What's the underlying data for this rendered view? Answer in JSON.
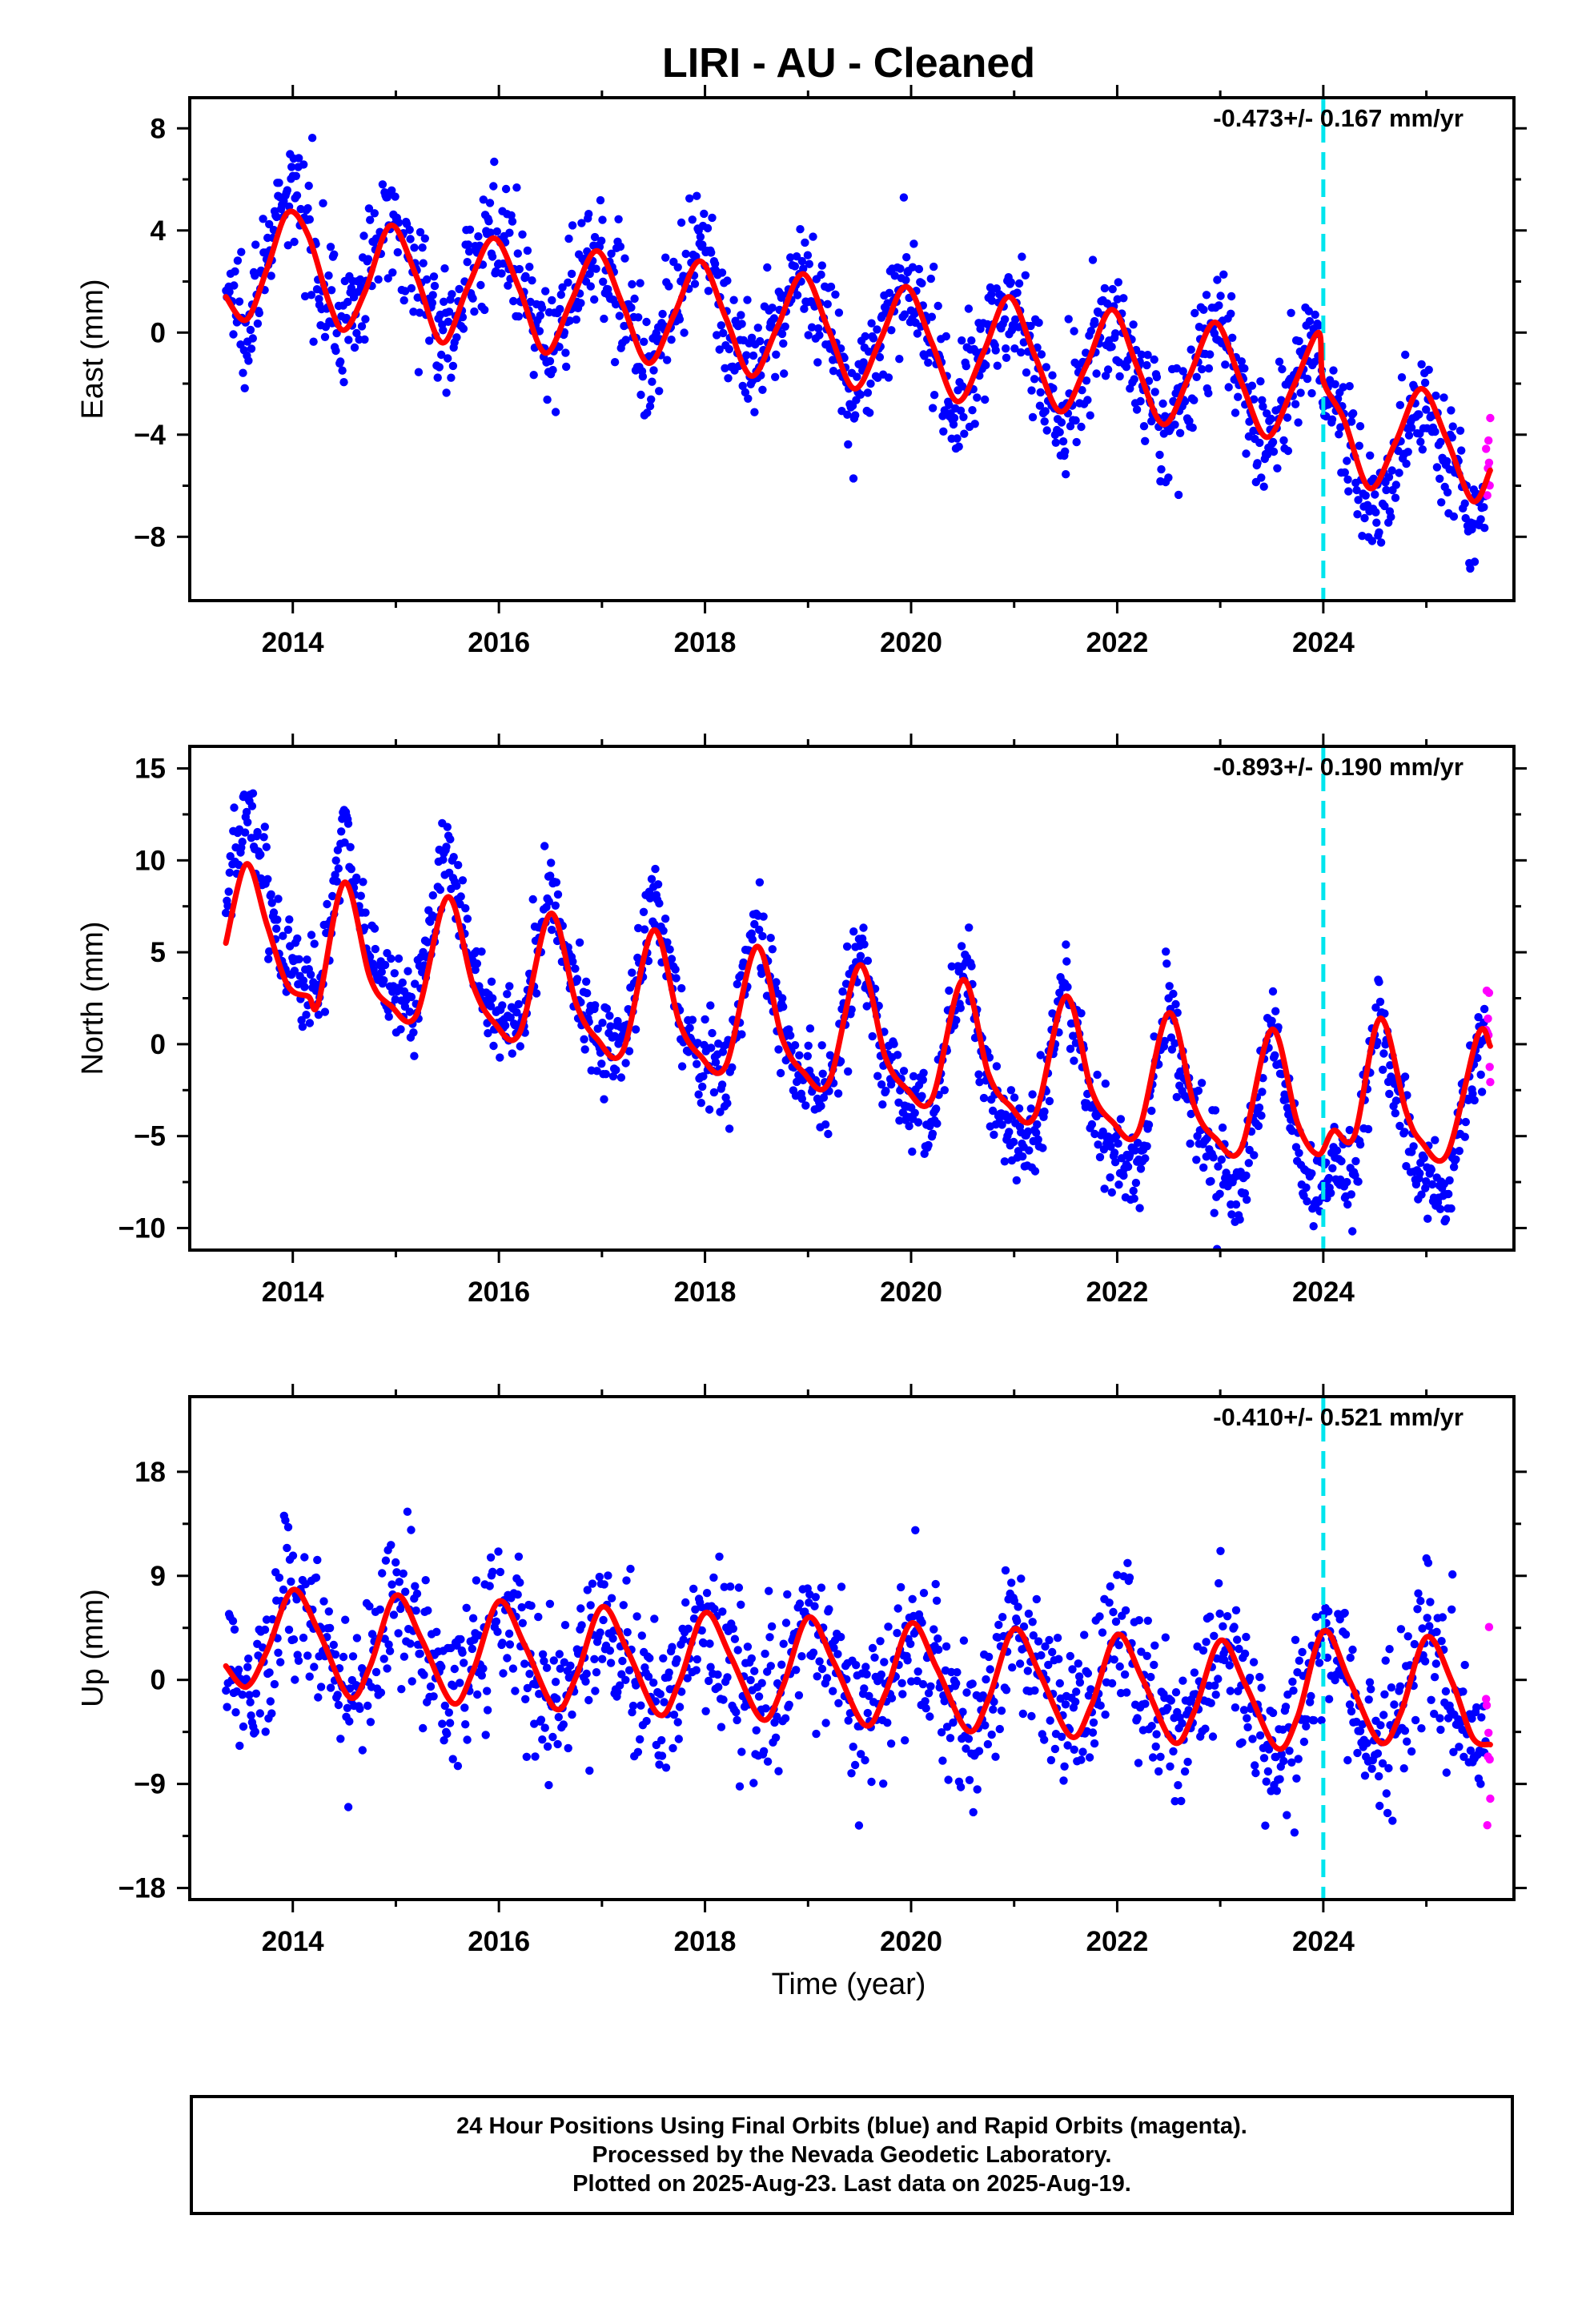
{
  "figure_title": "LIRI  - AU - Cleaned",
  "xlabel": "Time (year)",
  "colors": {
    "final_orbits": "#0000ff",
    "rapid_orbits": "#ff00ff",
    "model_fit": "#ff0000",
    "equipment_change": "#00e5ee"
  },
  "caption": {
    "line1": "24 Hour Positions Using Final Orbits (blue) and Rapid Orbits (magenta).",
    "line2": "Processed by the Nevada Geodetic Laboratory.",
    "line3": "Plotted on 2025-Aug-23. Last data on 2025-Aug-19."
  },
  "chart_data": [
    {
      "type": "scatter",
      "component": "East",
      "ylabel": "East (mm)",
      "rate_label": "-0.473+/- 0.167 mm/yr",
      "xlim": [
        2013.0,
        2025.85
      ],
      "ylim": [
        -10.5,
        9.2
      ],
      "x_ticks": [
        2014,
        2016,
        2018,
        2020,
        2022,
        2024
      ],
      "x_tick_labels": [
        "2014",
        "2016",
        "2018",
        "2020",
        "2022",
        "2024"
      ],
      "y_ticks": [
        8,
        4,
        0,
        -4,
        -8
      ],
      "y_tick_labels": [
        "8",
        "4",
        "0",
        "−4",
        "−8"
      ],
      "data_start": 2013.35,
      "data_end": 2025.62,
      "rapid_start": 2025.58,
      "equipment_change_year": 2024.0,
      "model_fit_year_mm": [
        [
          2013.35,
          1.4
        ],
        [
          2013.55,
          0.5
        ],
        [
          2013.75,
          2.5
        ],
        [
          2013.95,
          4.7
        ],
        [
          2014.15,
          3.8
        ],
        [
          2014.35,
          1.2
        ],
        [
          2014.5,
          0.1
        ],
        [
          2014.7,
          1.6
        ],
        [
          2014.95,
          4.2
        ],
        [
          2015.2,
          2.2
        ],
        [
          2015.45,
          -0.4
        ],
        [
          2015.7,
          1.8
        ],
        [
          2015.95,
          3.7
        ],
        [
          2016.2,
          1.7
        ],
        [
          2016.45,
          -0.8
        ],
        [
          2016.7,
          1.2
        ],
        [
          2016.95,
          3.2
        ],
        [
          2017.2,
          1.1
        ],
        [
          2017.45,
          -1.2
        ],
        [
          2017.7,
          0.7
        ],
        [
          2017.95,
          2.8
        ],
        [
          2018.2,
          0.6
        ],
        [
          2018.45,
          -1.7
        ],
        [
          2018.7,
          0.2
        ],
        [
          2018.95,
          2.3
        ],
        [
          2019.2,
          0.1
        ],
        [
          2019.45,
          -2.2
        ],
        [
          2019.7,
          -0.3
        ],
        [
          2019.95,
          1.8
        ],
        [
          2020.2,
          -0.4
        ],
        [
          2020.45,
          -2.7
        ],
        [
          2020.7,
          -0.8
        ],
        [
          2020.95,
          1.4
        ],
        [
          2021.2,
          -0.9
        ],
        [
          2021.45,
          -3.1
        ],
        [
          2021.7,
          -1.3
        ],
        [
          2021.95,
          0.9
        ],
        [
          2022.2,
          -1.4
        ],
        [
          2022.45,
          -3.6
        ],
        [
          2022.7,
          -1.7
        ],
        [
          2022.95,
          0.4
        ],
        [
          2023.2,
          -1.9
        ],
        [
          2023.45,
          -4.1
        ],
        [
          2023.7,
          -2.2
        ],
        [
          2023.95,
          0.0
        ],
        [
          2024.0,
          -1.9
        ],
        [
          2024.2,
          -3.4
        ],
        [
          2024.45,
          -6.1
        ],
        [
          2024.7,
          -4.3
        ],
        [
          2024.95,
          -2.2
        ],
        [
          2025.2,
          -4.2
        ],
        [
          2025.45,
          -6.6
        ],
        [
          2025.62,
          -5.4
        ]
      ]
    },
    {
      "type": "scatter",
      "component": "North",
      "ylabel": "North (mm)",
      "rate_label": "-0.893+/- 0.190 mm/yr",
      "xlim": [
        2013.0,
        2025.85
      ],
      "ylim": [
        -11.2,
        16.2
      ],
      "x_ticks": [
        2014,
        2016,
        2018,
        2020,
        2022,
        2024
      ],
      "x_tick_labels": [
        "2014",
        "2016",
        "2018",
        "2020",
        "2022",
        "2024"
      ],
      "y_ticks": [
        15,
        10,
        5,
        0,
        -5,
        -10
      ],
      "y_tick_labels": [
        "15",
        "10",
        "5",
        "0",
        "−5",
        "−10"
      ],
      "data_start": 2013.35,
      "data_end": 2025.62,
      "rapid_start": 2025.58,
      "equipment_change_year": 2024.0,
      "model_fit_year_mm": [
        [
          2013.35,
          5.5
        ],
        [
          2013.55,
          9.8
        ],
        [
          2013.75,
          6.5
        ],
        [
          2013.95,
          3.2
        ],
        [
          2014.15,
          2.6
        ],
        [
          2014.25,
          2.3
        ],
        [
          2014.5,
          8.8
        ],
        [
          2014.75,
          3.6
        ],
        [
          2014.95,
          2.1
        ],
        [
          2015.2,
          1.6
        ],
        [
          2015.5,
          8.0
        ],
        [
          2015.75,
          3.2
        ],
        [
          2015.95,
          1.2
        ],
        [
          2016.2,
          0.6
        ],
        [
          2016.5,
          7.1
        ],
        [
          2016.75,
          2.2
        ],
        [
          2016.95,
          0.3
        ],
        [
          2017.2,
          -0.4
        ],
        [
          2017.5,
          6.2
        ],
        [
          2017.75,
          1.2
        ],
        [
          2017.95,
          -0.6
        ],
        [
          2018.2,
          -1.2
        ],
        [
          2018.5,
          5.3
        ],
        [
          2018.75,
          0.3
        ],
        [
          2018.95,
          -1.5
        ],
        [
          2019.2,
          -2.1
        ],
        [
          2019.5,
          4.3
        ],
        [
          2019.75,
          -0.7
        ],
        [
          2019.95,
          -2.4
        ],
        [
          2020.2,
          -3.0
        ],
        [
          2020.5,
          3.5
        ],
        [
          2020.75,
          -1.6
        ],
        [
          2020.95,
          -3.3
        ],
        [
          2021.2,
          -3.9
        ],
        [
          2021.5,
          2.6
        ],
        [
          2021.75,
          -2.5
        ],
        [
          2021.95,
          -4.2
        ],
        [
          2022.2,
          -4.8
        ],
        [
          2022.5,
          1.7
        ],
        [
          2022.75,
          -3.4
        ],
        [
          2022.95,
          -5.1
        ],
        [
          2023.2,
          -5.7
        ],
        [
          2023.5,
          0.8
        ],
        [
          2023.75,
          -4.3
        ],
        [
          2023.95,
          -6.0
        ],
        [
          2024.1,
          -4.7
        ],
        [
          2024.3,
          -5.0
        ],
        [
          2024.55,
          1.4
        ],
        [
          2024.8,
          -3.6
        ],
        [
          2024.95,
          -5.3
        ],
        [
          2025.2,
          -6.0
        ],
        [
          2025.5,
          0.5
        ],
        [
          2025.62,
          -0.1
        ]
      ]
    },
    {
      "type": "scatter",
      "component": "Up",
      "ylabel": "Up (mm)",
      "rate_label": "-0.410+/- 0.521 mm/yr",
      "xlim": [
        2013.0,
        2025.85
      ],
      "ylim": [
        -19.0,
        24.5
      ],
      "x_ticks": [
        2014,
        2016,
        2018,
        2020,
        2022,
        2024
      ],
      "x_tick_labels": [
        "2014",
        "2016",
        "2018",
        "2020",
        "2022",
        "2024"
      ],
      "y_ticks": [
        18,
        9,
        0,
        -9,
        -18
      ],
      "y_tick_labels": [
        "18",
        "9",
        "0",
        "−9",
        "−18"
      ],
      "data_start": 2013.35,
      "data_end": 2025.62,
      "rapid_start": 2025.58,
      "equipment_change_year": 2024.0,
      "model_fit_year_mm": [
        [
          2013.35,
          1.2
        ],
        [
          2013.55,
          -0.6
        ],
        [
          2013.75,
          2.5
        ],
        [
          2014.0,
          7.8
        ],
        [
          2014.25,
          4.2
        ],
        [
          2014.55,
          -1.5
        ],
        [
          2014.75,
          1.2
        ],
        [
          2015.0,
          7.3
        ],
        [
          2015.25,
          3.5
        ],
        [
          2015.55,
          -2.0
        ],
        [
          2015.75,
          0.8
        ],
        [
          2016.0,
          6.8
        ],
        [
          2016.25,
          3.0
        ],
        [
          2016.55,
          -2.5
        ],
        [
          2016.75,
          0.3
        ],
        [
          2017.0,
          6.3
        ],
        [
          2017.25,
          2.5
        ],
        [
          2017.55,
          -3.0
        ],
        [
          2017.75,
          -0.2
        ],
        [
          2018.0,
          5.8
        ],
        [
          2018.25,
          2.0
        ],
        [
          2018.55,
          -3.4
        ],
        [
          2018.75,
          -0.7
        ],
        [
          2019.0,
          5.4
        ],
        [
          2019.25,
          1.5
        ],
        [
          2019.55,
          -3.9
        ],
        [
          2019.75,
          -1.2
        ],
        [
          2020.0,
          4.9
        ],
        [
          2020.25,
          1.0
        ],
        [
          2020.55,
          -4.4
        ],
        [
          2020.75,
          -1.7
        ],
        [
          2021.0,
          4.4
        ],
        [
          2021.25,
          0.5
        ],
        [
          2021.55,
          -4.9
        ],
        [
          2021.75,
          -2.2
        ],
        [
          2022.0,
          3.9
        ],
        [
          2022.25,
          0.0
        ],
        [
          2022.55,
          -5.4
        ],
        [
          2022.75,
          -2.7
        ],
        [
          2023.0,
          3.4
        ],
        [
          2023.25,
          -0.5
        ],
        [
          2023.55,
          -5.9
        ],
        [
          2023.75,
          -3.2
        ],
        [
          2024.0,
          4.2
        ],
        [
          2024.25,
          0.0
        ],
        [
          2024.55,
          -5.4
        ],
        [
          2024.75,
          -2.9
        ],
        [
          2025.0,
          3.7
        ],
        [
          2025.25,
          -0.2
        ],
        [
          2025.45,
          -5.0
        ],
        [
          2025.62,
          -5.6
        ]
      ]
    }
  ]
}
